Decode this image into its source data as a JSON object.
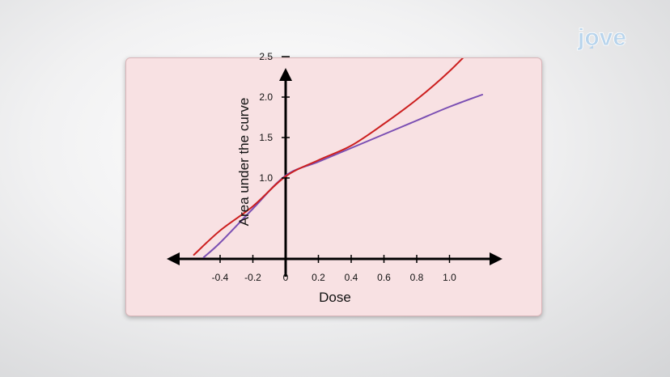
{
  "brand": {
    "logo_text": "jove",
    "accent_color": "#9fc3e3"
  },
  "chart_data": {
    "type": "line",
    "title": "",
    "xlabel": "Dose",
    "ylabel": "Area under the curve",
    "xlim": [
      -0.55,
      1.2
    ],
    "ylim": [
      0,
      2.8
    ],
    "x_ticks": [
      -0.4,
      -0.2,
      0,
      0.2,
      0.4,
      0.6,
      0.8,
      1.0
    ],
    "x_tick_labels": [
      "-0.4",
      "-0.2",
      "0",
      "0.2",
      "0.4",
      "0.6",
      "0.8",
      "1.0"
    ],
    "y_ticks": [
      1.0,
      1.5,
      2.0,
      2.5
    ],
    "y_tick_labels": [
      "1.0",
      "1.5",
      "2.0",
      "2.5"
    ],
    "grid": false,
    "legend": "none",
    "series": [
      {
        "color": "#cc1f1f",
        "x": [
          -0.56,
          -0.4,
          -0.2,
          0.0,
          0.2,
          0.4,
          0.6,
          0.8,
          1.0,
          1.2
        ],
        "y": [
          0.05,
          0.35,
          0.65,
          1.02,
          1.22,
          1.4,
          1.67,
          1.97,
          2.32,
          2.73
        ]
      },
      {
        "color": "#7b4fb3",
        "x": [
          -0.5,
          -0.4,
          -0.2,
          0.0,
          0.2,
          0.4,
          0.6,
          0.8,
          1.0,
          1.2
        ],
        "y": [
          0.02,
          0.2,
          0.62,
          1.03,
          1.2,
          1.37,
          1.54,
          1.71,
          1.88,
          2.03
        ]
      }
    ]
  }
}
